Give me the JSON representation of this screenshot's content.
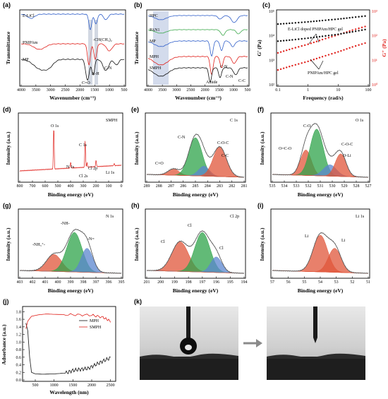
{
  "colors": {
    "black": "#111111",
    "red": "#e0201b",
    "blue": "#2f5ec9",
    "green": "#3aa84a",
    "xps_green": "#2ea34a",
    "xps_red": "#e0563a",
    "xps_blue": "#5b86cf",
    "raw": "#888888",
    "envelope": "#555555",
    "shade": "#8ea3c7"
  },
  "panels": {
    "a": {
      "letter": "(a)",
      "xlabel": "Wavenumber (cm⁻¹)",
      "ylabel": "Transmittance",
      "xticks": [
        "4000",
        "3500",
        "3000",
        "2500",
        "2000",
        "1500",
        "1000",
        "500"
      ],
      "traces": [
        "E-LiCl",
        "PNIPAm",
        "MP"
      ],
      "annotations": [
        "-CH(CH₃)₂",
        "N-H",
        "C-N",
        "C=O"
      ]
    },
    "b": {
      "letter": "(b)",
      "xlabel": "Wavenumber (cm⁻¹)",
      "ylabel": "Transmittance",
      "xticks": [
        "4000",
        "3500",
        "3000",
        "2500",
        "2000",
        "1500",
        "1000",
        "500"
      ],
      "traces": [
        "HPC",
        "PAN1",
        "MP",
        "MPH",
        "SMPH"
      ],
      "annotations": [
        "C-N",
        "C-N",
        "C-C",
        "Amide"
      ]
    },
    "c": {
      "letter": "(c)",
      "xlabel": "Frequency (rad/s)",
      "ylabel_left": "G′ (Pa)",
      "ylabel_right": "G″ (Pa)",
      "xticks": [
        "0.1",
        "1",
        "10",
        "100"
      ],
      "yticks_left": [
        "10²",
        "10³",
        "10⁴",
        "10⁵"
      ],
      "yticks_right": [
        "10⁰",
        "10¹",
        "10²",
        "10³"
      ],
      "annotations": [
        "E-LiCl doped PNIPAm/HPC gel",
        "PNIPAm/HPC gel"
      ]
    },
    "d": {
      "letter": "(d)",
      "title": "SMPH",
      "xlabel": "Binding energy (eV)",
      "ylabel": "Intensity (a.u.)",
      "xticks": [
        "800",
        "700",
        "600",
        "500",
        "400",
        "300",
        "200",
        "100",
        "0"
      ],
      "peaks": [
        "O 1s",
        "C 1s",
        "N 1s",
        "Cl 2s",
        "Cl 2p",
        "Li 1s"
      ]
    },
    "e": {
      "letter": "(e)",
      "title": "C 1s",
      "xlabel": "Binding energy (eV)",
      "ylabel": "Intensity (a.u.)",
      "xticks": [
        "289",
        "288",
        "287",
        "286",
        "285",
        "284",
        "283",
        "282",
        "281"
      ],
      "peaks": [
        "C-N",
        "C=O",
        "C-O-C",
        "C-C"
      ]
    },
    "f": {
      "letter": "(f)",
      "title": "O 1s",
      "xlabel": "Binding energy (eV)",
      "ylabel": "Intensity (a.u.)",
      "xticks": [
        "535",
        "534",
        "533",
        "532",
        "531",
        "530",
        "529",
        "528",
        "527"
      ],
      "peaks": [
        "C-O",
        "O=C-O",
        "C-O-C",
        "O-Li"
      ]
    },
    "g": {
      "letter": "(g)",
      "title": "N 1s",
      "xlabel": "Binding energy (eV)",
      "ylabel": "Intensity (a.u.)",
      "xticks": [
        "403",
        "402",
        "401",
        "400",
        "399",
        "398",
        "397",
        "396",
        "395"
      ],
      "peaks": [
        "-NH-",
        "-NH₃⁺-",
        "-N="
      ]
    },
    "h": {
      "letter": "(h)",
      "title": "Cl 2p",
      "xlabel": "Binding energy (eV)",
      "ylabel": "Intensity (a.u.)",
      "xticks": [
        "201",
        "200",
        "199",
        "198",
        "197",
        "196",
        "195",
        "194"
      ],
      "peaks": [
        "Cl",
        "Cl",
        "Cl"
      ]
    },
    "i": {
      "letter": "(i)",
      "title": "Li 1s",
      "xlabel": "Binding energy (eV)",
      "ylabel": "Intensity (a.u.)",
      "xticks": [
        "57",
        "56",
        "55",
        "54",
        "53",
        "52",
        "51"
      ],
      "peaks": [
        "Li",
        "Li"
      ]
    },
    "j": {
      "letter": "(j)",
      "xlabel": "Wavelength (nm)",
      "ylabel": "Adsorbance (a.u.)",
      "xticks": [
        "500",
        "1000",
        "1500",
        "2000",
        "2500"
      ],
      "yticks": [
        "0.0",
        "0.2",
        "0.4",
        "0.6",
        "0.8",
        "1.0",
        "1.2",
        "1.4",
        "1.6",
        "1.8"
      ],
      "legend": [
        "MPH",
        "SMPH"
      ]
    },
    "k": {
      "letter": "(k)"
    }
  },
  "chart_data": [
    {
      "panel": "c",
      "type": "scatter",
      "xlabel": "Frequency (rad/s)",
      "ylabel": "G′ (Pa) / G″ (Pa)",
      "x": [
        0.1,
        0.3,
        1,
        3,
        10,
        30,
        100
      ],
      "series": [
        {
          "values": [
            30000,
            33000,
            37000,
            42000,
            48000,
            56000,
            66000
          ]
        },
        {
          "values": [
            20,
            30,
            45,
            70,
            110,
            170,
            260
          ]
        },
        {
          "values": [
            6000,
            6800,
            8000,
            9500,
            11500,
            14500,
            19000
          ]
        },
        {
          "values": [
            4,
            6,
            9,
            14,
            22,
            35,
            55
          ]
        }
      ]
    },
    {
      "panel": "j",
      "type": "line",
      "xlabel": "Wavelength (nm)",
      "ylabel": "Adsorbance (a.u.)",
      "ylim": [
        0,
        1.9
      ],
      "series": [
        {
          "name": "MPH",
          "x": [
            250,
            300,
            350,
            400,
            500,
            700,
            1000,
            1300,
            1500,
            1700,
            1900,
            2100,
            2300,
            2500
          ],
          "values": [
            1.5,
            1.3,
            0.6,
            0.2,
            0.16,
            0.15,
            0.16,
            0.18,
            0.25,
            0.28,
            0.3,
            0.4,
            0.5,
            0.58
          ]
        },
        {
          "name": "SMPH",
          "x": [
            250,
            300,
            400,
            600,
            800,
            1000,
            1500,
            2000,
            2300,
            2500
          ],
          "values": [
            1.35,
            1.55,
            1.68,
            1.72,
            1.74,
            1.73,
            1.72,
            1.71,
            1.65,
            1.55
          ]
        }
      ]
    }
  ]
}
